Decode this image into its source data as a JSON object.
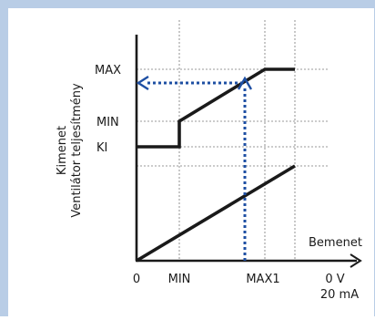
{
  "colors": {
    "frame": "#b9cde6",
    "background": "#ffffff",
    "line": "#1a1a1a",
    "arrow": "#1e4fa3",
    "gridline": "#777777"
  },
  "y_axis": {
    "title_line1": "Kimenet",
    "title_line2": "Ventilátor teljesítmény",
    "ticks": {
      "max": "MAX",
      "min": "MIN",
      "off": "KI"
    }
  },
  "x_axis": {
    "title": "Bemenet",
    "ticks": {
      "origin": "0",
      "min": "MIN",
      "max1": "MAX1",
      "end_top": "0 V",
      "end_bottom": "20 mA"
    }
  }
}
